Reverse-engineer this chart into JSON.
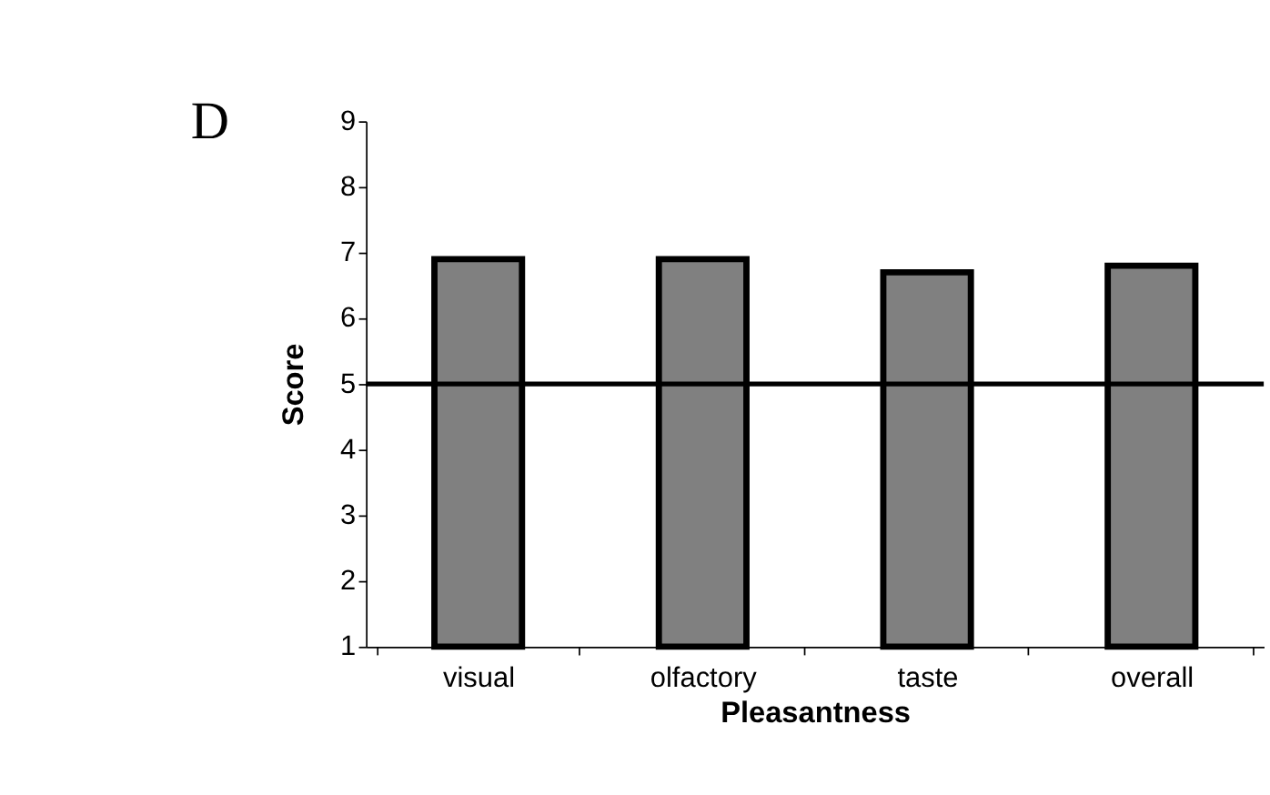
{
  "chart_data": {
    "type": "bar",
    "categories": [
      "visual",
      "olfactory",
      "taste",
      "overall"
    ],
    "values": [
      6.9,
      6.9,
      6.7,
      6.8
    ],
    "color": "#808080",
    "xlabel": "Pleasantness",
    "ylabel": "Score",
    "ylim": [
      1,
      9
    ],
    "yticks": [
      1,
      2,
      3,
      4,
      5,
      6,
      7,
      8,
      9
    ],
    "grid": false,
    "ref_lines": [
      {
        "axis": "y",
        "value": 5,
        "color": "#000000"
      }
    ],
    "annotations": [
      "D"
    ]
  }
}
